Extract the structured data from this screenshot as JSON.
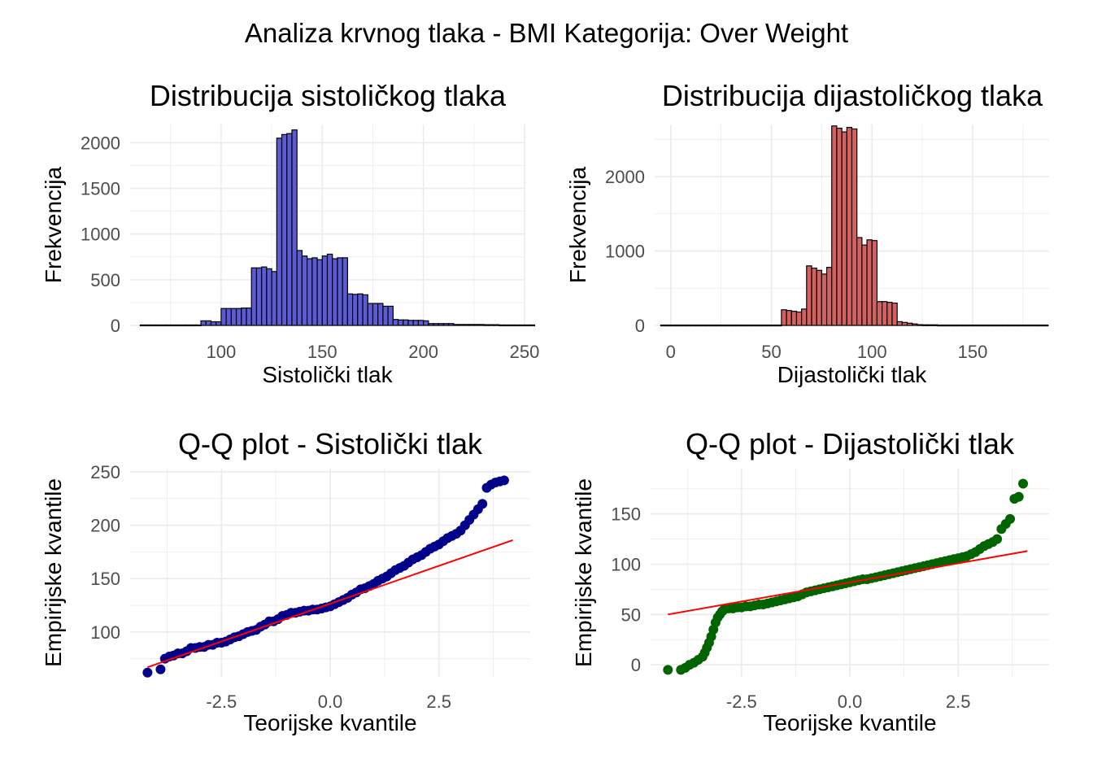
{
  "figure": {
    "title": "Analiza krvnog tlaka - BMI Kategorija: Over Weight"
  },
  "chart_data": [
    {
      "type": "bar",
      "title": "Distribucija sistoličkog tlaka",
      "xlabel": "Sistolički tlak",
      "ylabel": "Frekvencija",
      "xlim": [
        55,
        250
      ],
      "ylim": [
        0,
        2200
      ],
      "xticks": [
        100,
        150,
        200,
        250
      ],
      "yticks": [
        0,
        500,
        1000,
        1500,
        2000
      ],
      "fill": "#5b5bd6",
      "outline": "#000000",
      "bin_start": 60,
      "bin_width": 2.5,
      "values": [
        5,
        5,
        5,
        5,
        5,
        5,
        5,
        5,
        5,
        5,
        5,
        5,
        50,
        50,
        40,
        40,
        185,
        185,
        185,
        185,
        190,
        190,
        630,
        630,
        640,
        620,
        590,
        2050,
        2090,
        2100,
        2140,
        820,
        760,
        730,
        740,
        720,
        760,
        780,
        730,
        740,
        740,
        345,
        340,
        345,
        335,
        240,
        240,
        240,
        210,
        210,
        65,
        60,
        60,
        55,
        55,
        55,
        50,
        20,
        20,
        20,
        20,
        20,
        10,
        10,
        10,
        10,
        10,
        10,
        8,
        8,
        8,
        5,
        5,
        5,
        5,
        5,
        5,
        5
      ]
    },
    {
      "type": "bar",
      "title": "Distribucija dijastoličkog tlaka",
      "xlabel": "Dijastolički tlak",
      "ylabel": "Frekvencija",
      "xlim": [
        -8,
        188
      ],
      "ylim": [
        0,
        2700
      ],
      "xticks": [
        0,
        50,
        100,
        150
      ],
      "yticks": [
        0,
        1000,
        2000
      ],
      "fill": "#d56060",
      "outline": "#000000",
      "bin_start": -5,
      "bin_width": 2.5,
      "values": [
        5,
        5,
        5,
        5,
        5,
        5,
        5,
        5,
        5,
        5,
        5,
        5,
        5,
        5,
        5,
        5,
        5,
        5,
        5,
        5,
        5,
        5,
        5,
        5,
        210,
        200,
        190,
        180,
        220,
        800,
        770,
        740,
        690,
        780,
        2680,
        2650,
        2600,
        2660,
        2640,
        1180,
        1080,
        1150,
        1140,
        320,
        320,
        310,
        300,
        50,
        40,
        30,
        20,
        10,
        8,
        8,
        8,
        5,
        5,
        5,
        5,
        5,
        5,
        5,
        5,
        5,
        5,
        5,
        5,
        5,
        5,
        5,
        5,
        5,
        5,
        5,
        5,
        5,
        5
      ]
    },
    {
      "type": "scatter",
      "title": "Q-Q plot - Sistolički tlak",
      "xlabel": "Teorijske kvantile",
      "ylabel": "Empirijske kvantile",
      "xlim": [
        -4.6,
        4.6
      ],
      "ylim": [
        58,
        253
      ],
      "xticks": [
        -2.5,
        0.0,
        2.5
      ],
      "yticks": [
        100,
        150,
        200,
        250
      ],
      "point_color": "#00008b",
      "line_color": "#ff0000",
      "reference_line": {
        "x": [
          -4.2,
          4.2
        ],
        "y": [
          67,
          186
        ]
      },
      "x": [
        -4.2,
        -3.9,
        -3.8,
        -3.7,
        -3.6,
        -3.5,
        -3.4,
        -3.3,
        -3.2,
        -3.1,
        -3.0,
        -2.9,
        -2.8,
        -2.7,
        -2.6,
        -2.5,
        -2.4,
        -2.3,
        -2.2,
        -2.1,
        -2.0,
        -1.9,
        -1.8,
        -1.7,
        -1.6,
        -1.5,
        -1.4,
        -1.3,
        -1.2,
        -1.1,
        -1.0,
        -0.9,
        -0.8,
        -0.7,
        -0.6,
        -0.5,
        -0.4,
        -0.3,
        -0.2,
        -0.1,
        0.0,
        0.1,
        0.2,
        0.3,
        0.4,
        0.5,
        0.6,
        0.7,
        0.8,
        0.9,
        1.0,
        1.1,
        1.2,
        1.3,
        1.4,
        1.5,
        1.6,
        1.7,
        1.8,
        1.9,
        2.0,
        2.1,
        2.2,
        2.3,
        2.4,
        2.5,
        2.6,
        2.7,
        2.8,
        2.9,
        3.0,
        3.1,
        3.2,
        3.3,
        3.4,
        3.5,
        3.6,
        3.7,
        3.8,
        3.9,
        4.0
      ],
      "y": [
        62,
        65,
        75,
        77,
        78,
        80,
        80,
        82,
        85,
        85,
        86,
        86,
        88,
        88,
        90,
        90,
        91,
        93,
        95,
        96,
        98,
        100,
        101,
        102,
        105,
        107,
        110,
        110,
        112,
        115,
        116,
        118,
        118,
        119,
        120,
        120,
        121,
        121,
        122,
        123,
        124,
        126,
        128,
        130,
        132,
        135,
        137,
        140,
        141,
        143,
        145,
        148,
        150,
        152,
        155,
        158,
        160,
        162,
        165,
        168,
        170,
        172,
        175,
        178,
        180,
        182,
        185,
        188,
        190,
        192,
        195,
        200,
        205,
        210,
        215,
        220,
        235,
        238,
        240,
        241,
        242
      ]
    },
    {
      "type": "scatter",
      "title": "Q-Q plot - Dijastolički tlak",
      "xlabel": "Teorijske kvantile",
      "ylabel": "Empirijske kvantile",
      "xlim": [
        -4.6,
        4.6
      ],
      "ylim": [
        -12,
        195
      ],
      "xticks": [
        -2.5,
        0.0,
        2.5
      ],
      "yticks": [
        0,
        50,
        100,
        150
      ],
      "point_color": "#006400",
      "line_color": "#ff0000",
      "reference_line": {
        "x": [
          -4.2,
          4.1
        ],
        "y": [
          50,
          113
        ]
      },
      "x": [
        -4.2,
        -3.9,
        -3.8,
        -3.7,
        -3.6,
        -3.5,
        -3.4,
        -3.35,
        -3.3,
        -3.25,
        -3.2,
        -3.15,
        -3.1,
        -3.05,
        -3.0,
        -2.95,
        -2.9,
        -2.8,
        -2.7,
        -2.6,
        -2.5,
        -2.4,
        -2.3,
        -2.2,
        -2.1,
        -2.0,
        -1.9,
        -1.8,
        -1.7,
        -1.6,
        -1.5,
        -1.4,
        -1.3,
        -1.2,
        -1.1,
        -1.0,
        -0.9,
        -0.8,
        -0.7,
        -0.6,
        -0.5,
        -0.4,
        -0.3,
        -0.2,
        -0.1,
        0.0,
        0.1,
        0.2,
        0.3,
        0.4,
        0.5,
        0.6,
        0.7,
        0.8,
        0.9,
        1.0,
        1.1,
        1.2,
        1.3,
        1.4,
        1.5,
        1.6,
        1.7,
        1.8,
        1.9,
        2.0,
        2.1,
        2.2,
        2.3,
        2.4,
        2.5,
        2.6,
        2.7,
        2.8,
        2.9,
        3.0,
        3.1,
        3.2,
        3.3,
        3.4,
        3.5,
        3.6,
        3.7,
        3.8,
        3.9,
        4.0
      ],
      "y": [
        -5,
        -5,
        -3,
        0,
        2,
        5,
        8,
        12,
        17,
        22,
        28,
        35,
        42,
        47,
        50,
        53,
        55,
        56,
        56,
        57,
        57,
        58,
        58,
        59,
        60,
        60,
        61,
        62,
        63,
        64,
        65,
        66,
        67,
        68,
        70,
        72,
        73,
        74,
        75,
        76,
        77,
        78,
        79,
        80,
        81,
        82,
        83,
        84,
        85,
        85,
        86,
        87,
        88,
        89,
        90,
        91,
        92,
        93,
        94,
        95,
        96,
        97,
        98,
        99,
        100,
        101,
        102,
        103,
        104,
        105,
        106,
        107,
        108,
        110,
        112,
        115,
        118,
        120,
        122,
        125,
        135,
        140,
        145,
        165,
        167,
        180
      ]
    }
  ]
}
